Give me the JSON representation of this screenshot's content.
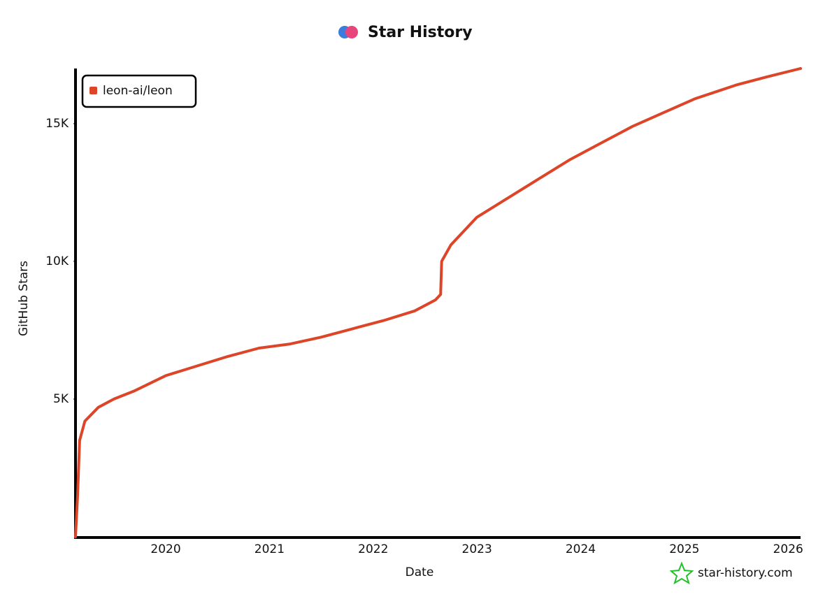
{
  "chart_data": {
    "type": "line",
    "title": "Star History",
    "xlabel": "Date",
    "ylabel": "GitHub Stars",
    "watermark": "star-history.com",
    "x": [
      2019.13,
      2019.15,
      2019.17,
      2019.22,
      2019.35,
      2019.5,
      2019.7,
      2020.0,
      2020.3,
      2020.6,
      2020.9,
      2021.2,
      2021.5,
      2021.8,
      2022.1,
      2022.4,
      2022.6,
      2022.65,
      2022.66,
      2022.75,
      2023.0,
      2023.3,
      2023.6,
      2023.9,
      2024.2,
      2024.5,
      2024.8,
      2025.1,
      2025.5,
      2025.8,
      2026.12
    ],
    "series": [
      {
        "name": "leon-ai/leon",
        "color": "#dd4528",
        "values": [
          0,
          1500,
          3500,
          4200,
          4700,
          5000,
          5300,
          5850,
          6200,
          6550,
          6850,
          7000,
          7250,
          7550,
          7850,
          8200,
          8600,
          8800,
          10000,
          10600,
          11600,
          12300,
          13000,
          13700,
          14300,
          14900,
          15400,
          15900,
          16400,
          16700,
          17000
        ]
      }
    ],
    "xlim": [
      2019.13,
      2026.12
    ],
    "xticks": [
      2020,
      2021,
      2022,
      2023,
      2024,
      2025,
      2026
    ],
    "ylim": [
      0,
      17000
    ],
    "yticks": [
      {
        "value": 5000,
        "label": "5K"
      },
      {
        "value": 10000,
        "label": "10K"
      },
      {
        "value": 15000,
        "label": "15K"
      }
    ],
    "legend": "top-left",
    "grid": false
  }
}
